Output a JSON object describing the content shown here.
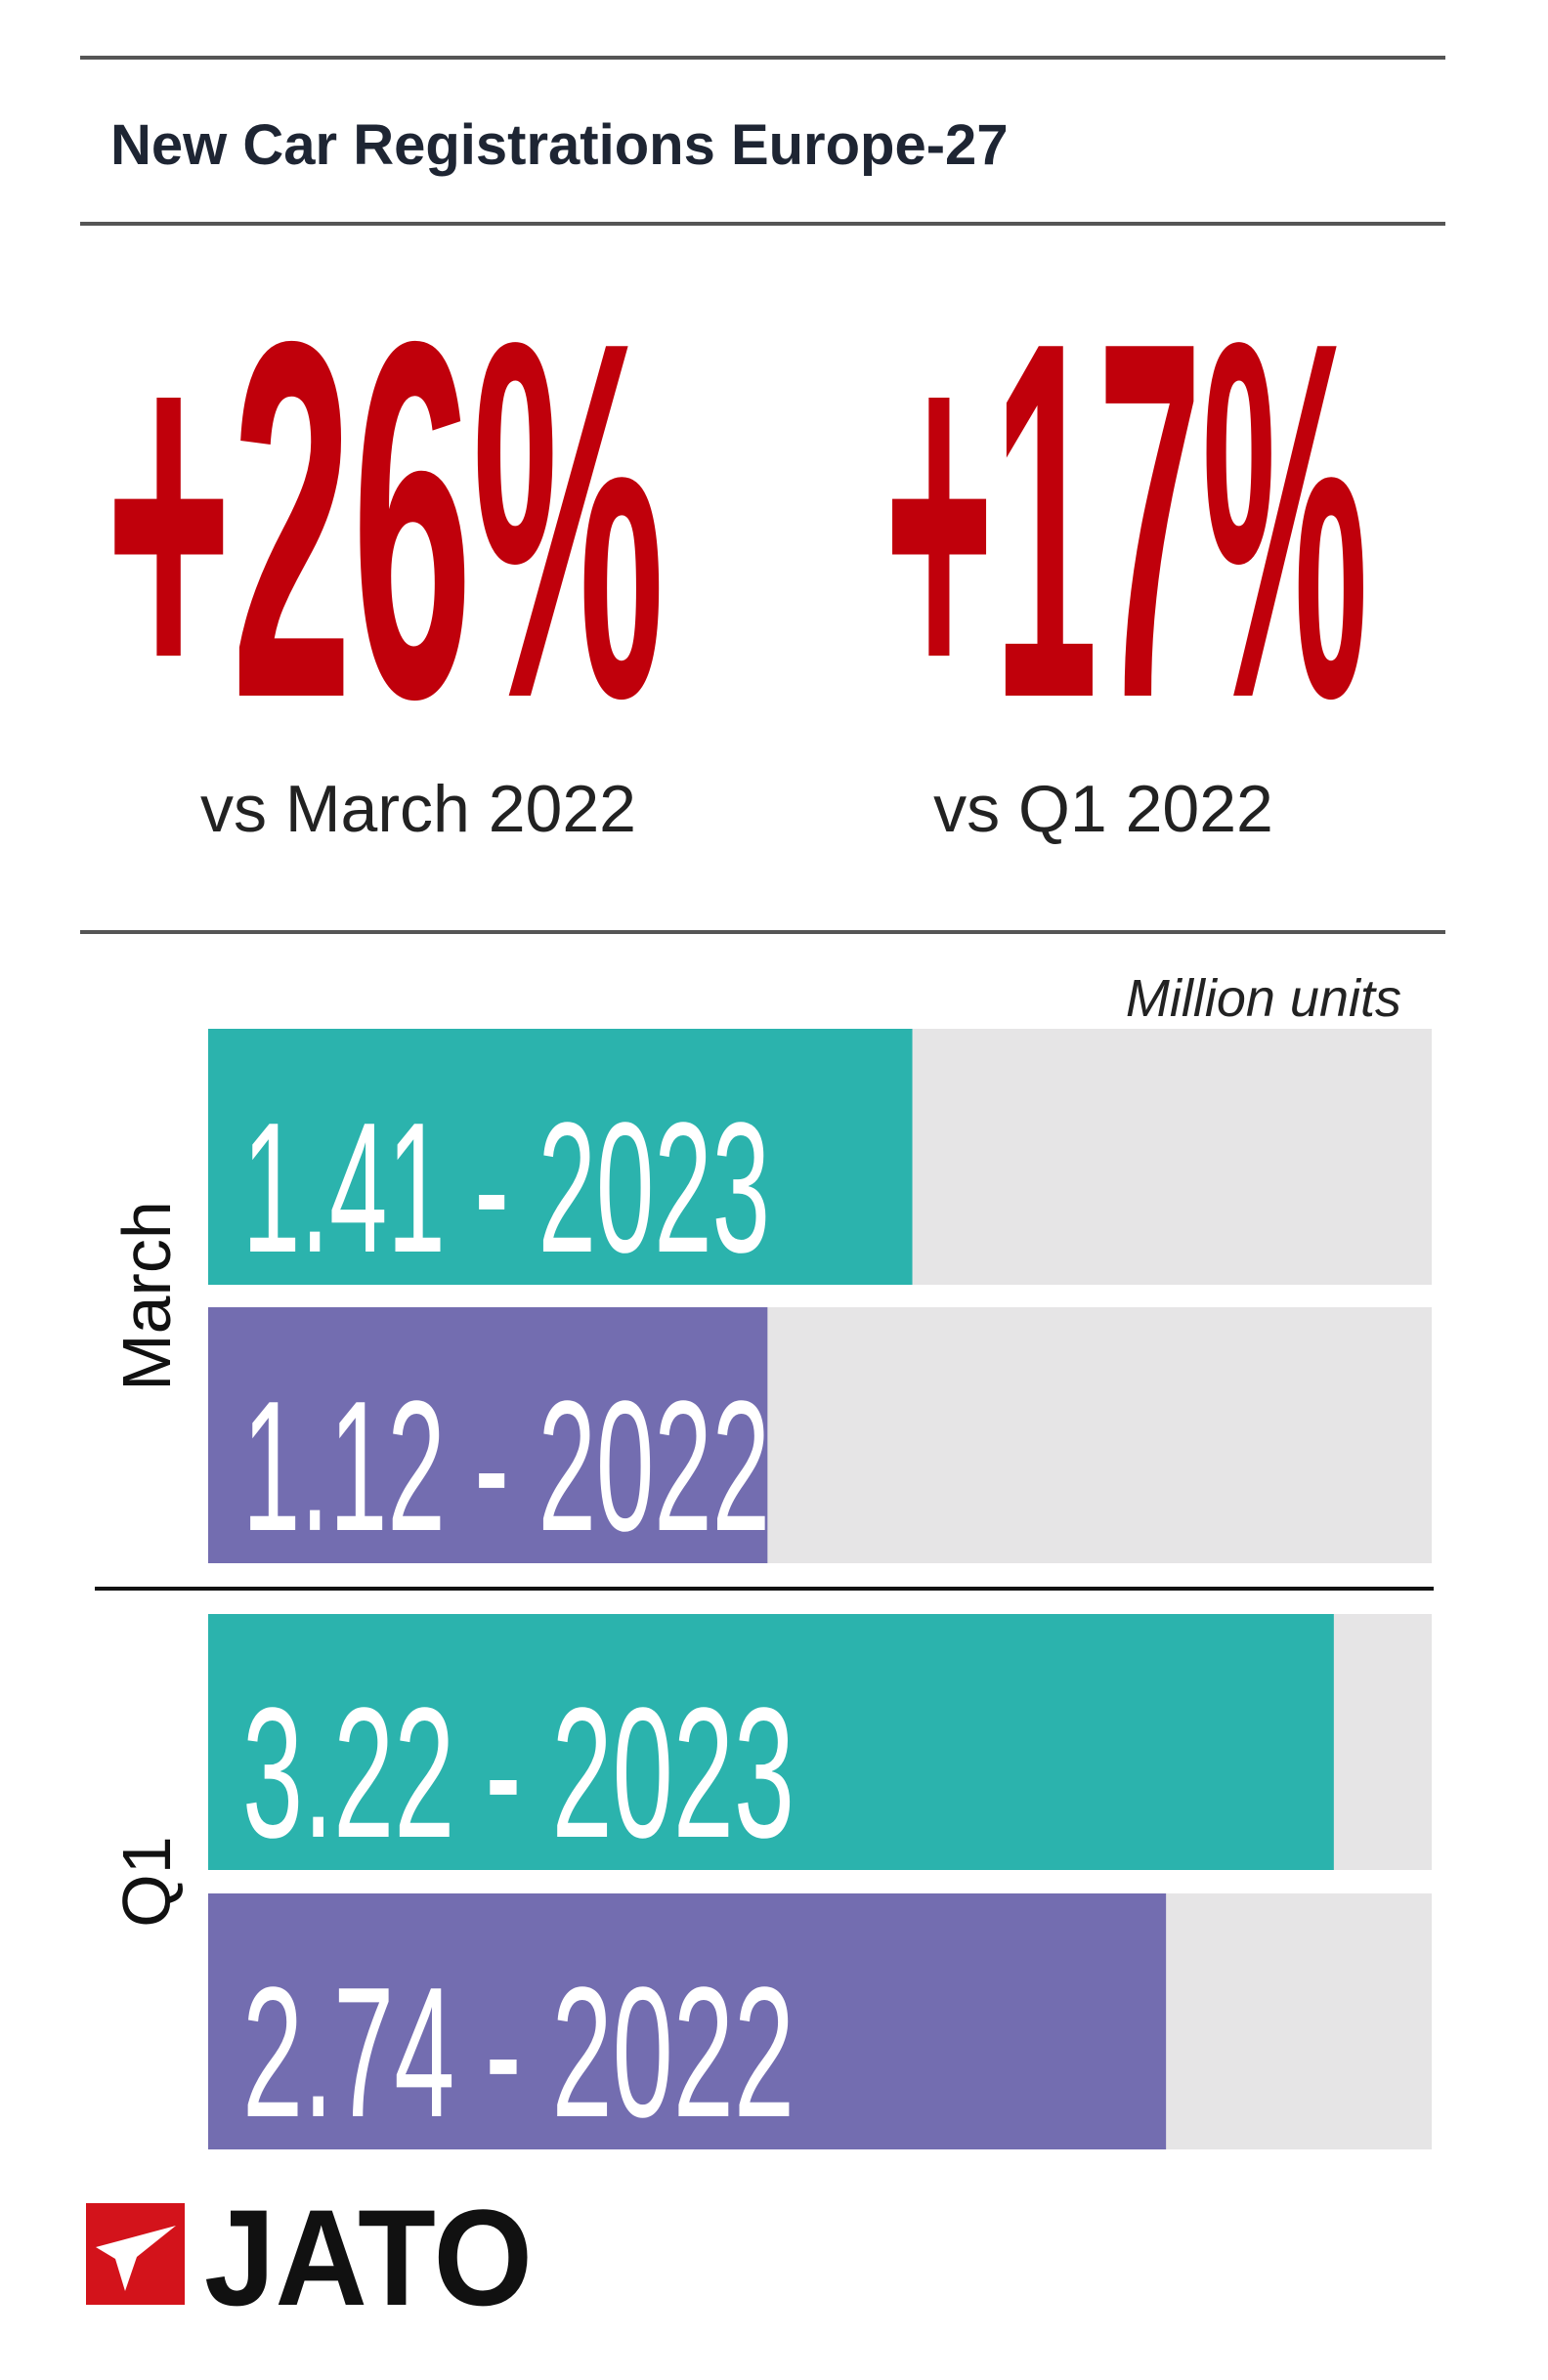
{
  "header": {
    "title": "New Car Registrations Europe-27"
  },
  "stats": [
    {
      "value": "+26%",
      "label": "vs March 2022"
    },
    {
      "value": "+17%",
      "label": "vs Q1 2022"
    }
  ],
  "unit_note": "Million units",
  "chart_data": [
    {
      "type": "bar",
      "categories": [
        "March"
      ],
      "xlim": [
        0,
        2.45
      ],
      "series": [
        {
          "color": "#2bb3ad",
          "values": [
            1.41
          ],
          "value_labels": [
            "1.41 - 2023"
          ]
        },
        {
          "color": "#736db0",
          "values": [
            1.12
          ],
          "value_labels": [
            "1.12 - 2022"
          ]
        }
      ]
    },
    {
      "type": "bar",
      "categories": [
        "Q1"
      ],
      "xlim": [
        0,
        3.5
      ],
      "series": [
        {
          "color": "#2bb3ad",
          "values": [
            3.22
          ],
          "value_labels": [
            "3.22 - 2023"
          ]
        },
        {
          "color": "#736db0",
          "values": [
            2.74
          ],
          "value_labels": [
            "2.74 - 2022"
          ]
        }
      ]
    }
  ],
  "logo": "JATO"
}
